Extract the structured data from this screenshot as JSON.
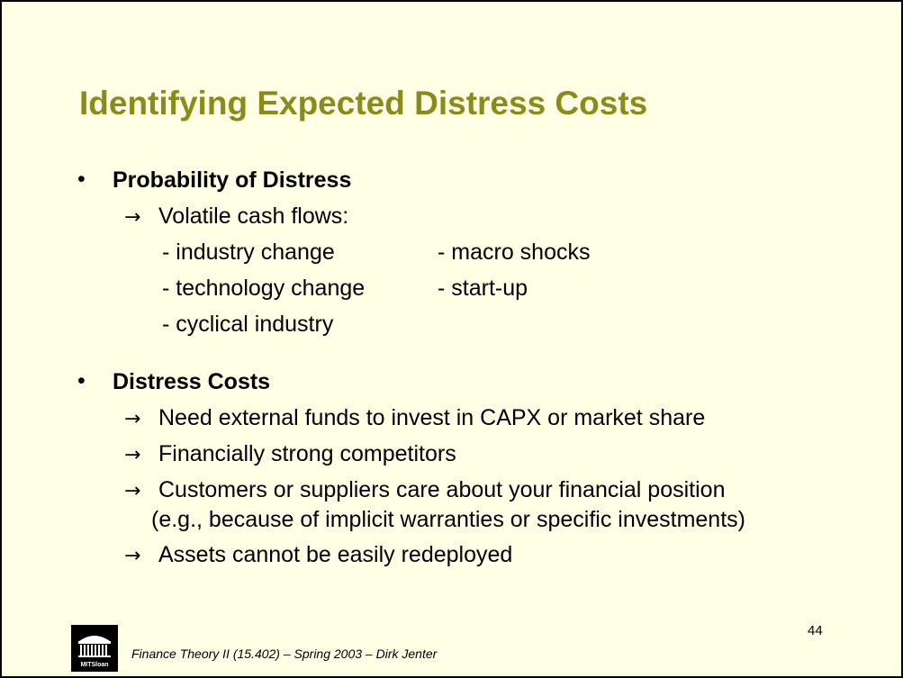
{
  "slide": {
    "title": "Identifying Expected Distress Costs",
    "section1": {
      "bullet": "•",
      "heading": "Probability of Distress",
      "arrow": "→",
      "subheading": "Volatile cash flows:",
      "left_items": [
        "- industry change",
        "- technology change",
        "- cyclical industry"
      ],
      "right_items": [
        "- macro shocks",
        "- start-up"
      ]
    },
    "section2": {
      "bullet": "•",
      "heading": "Distress Costs",
      "arrow": "→",
      "items": [
        "Need external funds to invest in CAPX or market share",
        "Financially strong competitors",
        "Customers or suppliers care about your financial position",
        "(e.g., because of implicit warranties or specific investments)",
        "Assets cannot be easily redeployed"
      ]
    },
    "footer": "Finance Theory II (15.402) – Spring 2003 – Dirk Jenter",
    "page_number": "44",
    "logo_text": "MITSloan"
  },
  "colors": {
    "background": "#ffffe5",
    "title": "#8b8b1a"
  }
}
